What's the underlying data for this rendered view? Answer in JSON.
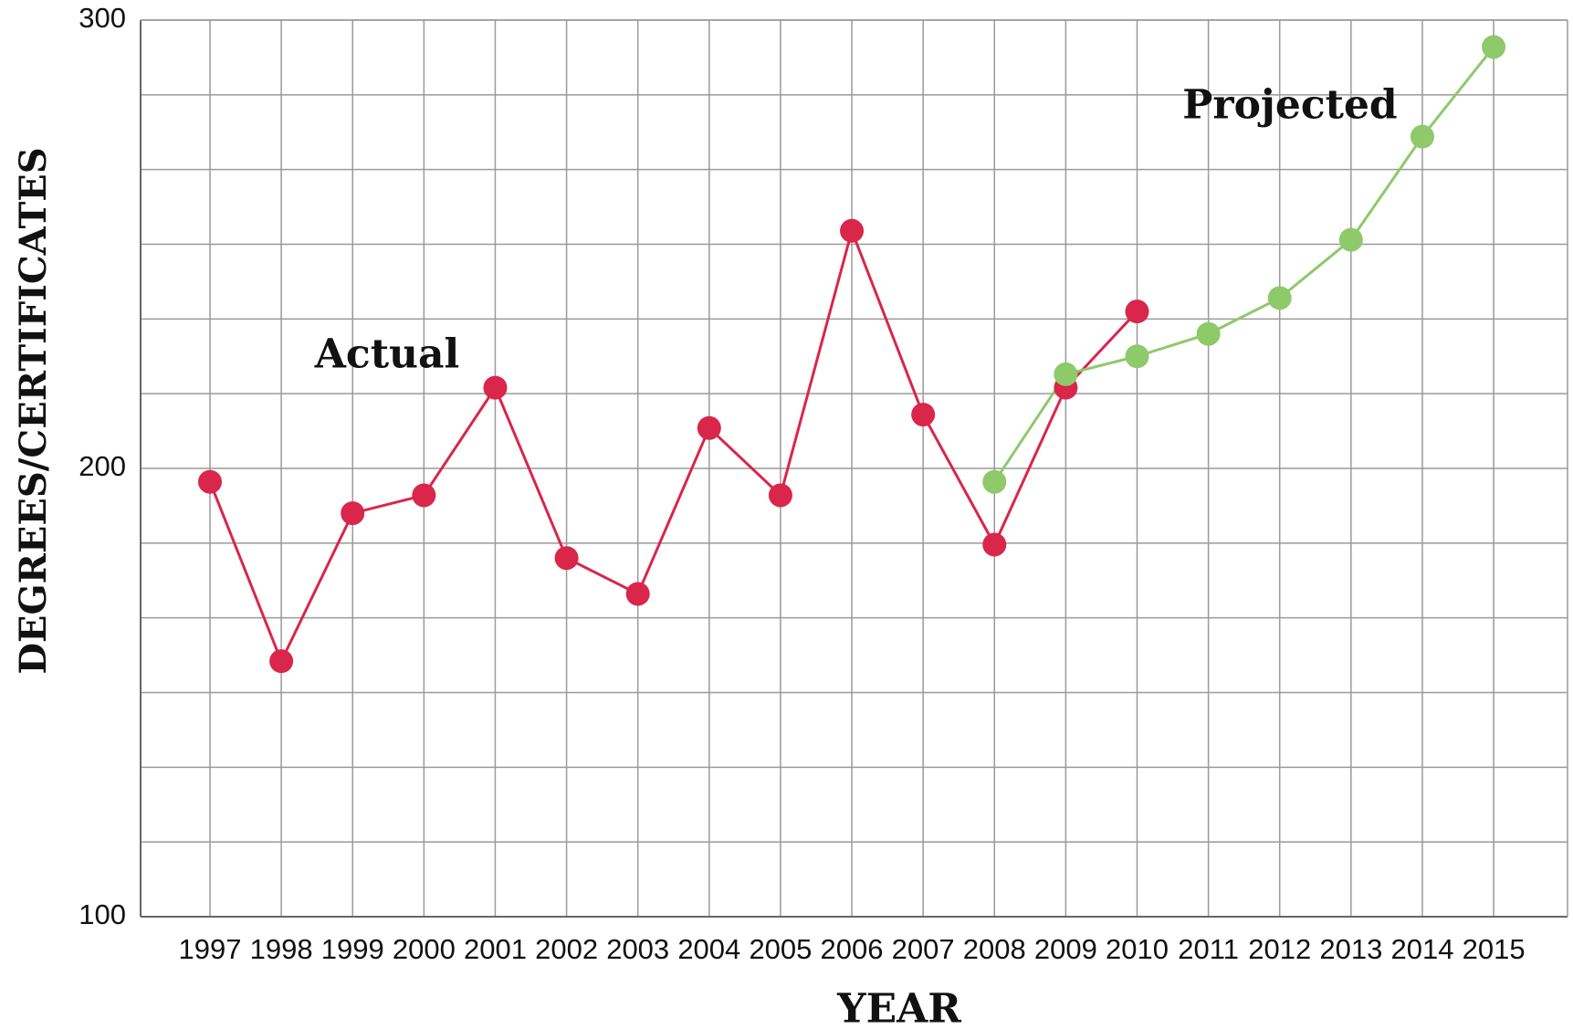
{
  "chart_data": {
    "type": "line",
    "xlabel": "YEAR",
    "ylabel": "DEGREES/CERTIFICATES",
    "categories": [
      "1997",
      "1998",
      "1999",
      "2000",
      "2001",
      "2002",
      "2003",
      "2004",
      "2005",
      "2006",
      "2007",
      "2008",
      "2009",
      "2010",
      "2011",
      "2012",
      "2013",
      "2014",
      "2015"
    ],
    "series": [
      {
        "name": "Actual",
        "color": "#d9264a",
        "values": [
          197,
          157,
          190,
          194,
          218,
          180,
          172,
          209,
          194,
          253,
          212,
          183,
          218,
          235,
          null,
          null,
          null,
          null,
          null
        ]
      },
      {
        "name": "Projected",
        "color": "#8ec96a",
        "values": [
          null,
          null,
          null,
          null,
          null,
          null,
          null,
          null,
          null,
          null,
          null,
          197,
          221,
          225,
          230,
          238,
          251,
          274,
          294
        ]
      }
    ],
    "ylim": [
      100,
      300
    ],
    "yticks": [
      100,
      200,
      300
    ],
    "yminor": [
      116.67,
      133.33,
      150,
      166.67,
      183.33,
      216.67,
      233.33,
      250,
      266.67,
      283.33
    ],
    "grid": true
  }
}
